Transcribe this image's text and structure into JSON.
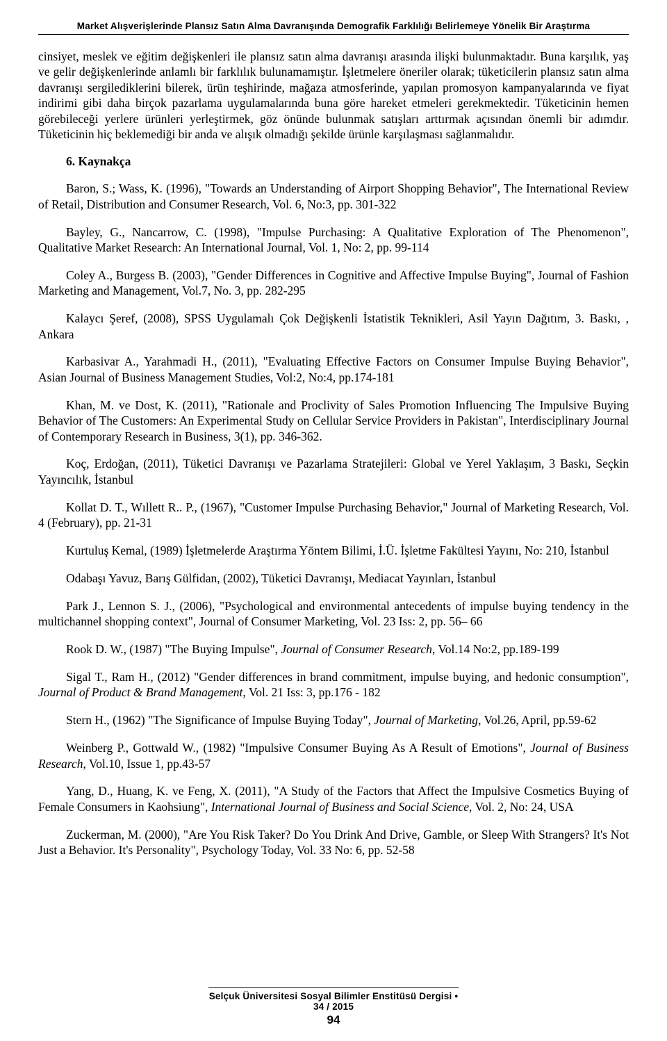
{
  "running_head": "Market Alışverişlerinde Plansız Satın Alma Davranışında Demografik Farklılığı Belirlemeye Yönelik Bir Araştırma",
  "body_paragraph": "cinsiyet, meslek ve eğitim değişkenleri ile plansız satın alma davranışı arasında ilişki bulunmaktadır. Buna karşılık, yaş ve gelir değişkenlerinde anlamlı bir farklılık bulunamamıştır. İşletmelere öneriler olarak; tüketicilerin plansız satın alma davranışı sergilediklerini bilerek, ürün teşhirinde, mağaza atmosferinde, yapılan promosyon kampanyalarında ve fiyat indirimi gibi daha birçok pazarlama uygulamalarında buna göre hareket etmeleri gerekmektedir. Tüketicinin hemen görebileceği yerlere ürünleri yerleştirmek, göz önünde bulunmak satışları arttırmak açısından önemli bir adımdır. Tüketicinin hiç beklemediği bir anda ve alışık olmadığı şekilde ürünle karşılaşması sağlanmalıdır.",
  "heading": "6. Kaynakça",
  "refs": [
    {
      "plain": "Baron, S.; Wass, K. (1996), \"Towards an Understanding of Airport Shopping Behavior\", The International Review of Retail, Distribution and Consumer Research, Vol. 6, No:3, pp. 301-322"
    },
    {
      "plain": "Bayley, G., Nancarrow, C. (1998), \"Impulse Purchasing: A Qualitative Exploration of The Phenomenon\", Qualitative Market Research: An International Journal, Vol. 1, No: 2, pp. 99-114"
    },
    {
      "plain": "Coley A., Burgess B. (2003), \"Gender Differences in Cognitive and Affective Impulse Buying\", Journal of Fashion Marketing and Management, Vol.7, No. 3, pp. 282-295"
    },
    {
      "plain": "Kalaycı Şeref, (2008), SPSS Uygulamalı Çok Değişkenli İstatistik Teknikleri, Asil Yayın Dağıtım, 3. Baskı, , Ankara"
    },
    {
      "plain": "Karbasivar A., Yarahmadi H., (2011), \"Evaluating Effective Factors on Consumer Impulse Buying Behavior\", Asian Journal of Business Management Studies, Vol:2, No:4, pp.174-181"
    },
    {
      "plain": "Khan, M. ve Dost, K. (2011), \"Rationale and Proclivity of Sales Promotion Influencing The Impulsive Buying Behavior of The Customers: An Experimental Study on Cellular Service Providers in Pakistan\", Interdisciplinary Journal of Contemporary Research in Business, 3(1), pp. 346-362."
    },
    {
      "plain": "Koç, Erdoğan, (2011), Tüketici Davranışı ve Pazarlama Stratejileri: Global ve Yerel Yaklaşım, 3 Baskı, Seçkin Yayıncılık, İstanbul"
    },
    {
      "plain": "Kollat D. T., Wıllett R.. P., (1967), \"Customer Impulse Purchasing Behavior,\" Journal of Marketing Research, Vol. 4 (February), pp. 21-31"
    },
    {
      "plain": "Kurtuluş Kemal, (1989) İşletmelerde Araştırma Yöntem Bilimi, İ.Ü. İşletme Fakültesi Yayını, No: 210, İstanbul"
    },
    {
      "plain": "Odabaşı Yavuz, Barış Gülfidan, (2002), Tüketici Davranışı, Mediacat Yayınları, İstanbul"
    },
    {
      "plain": "Park J., Lennon S. J., (2006), \"Psychological and environmental antecedents of impulse buying tendency in the multichannel shopping context\", Journal of Consumer Marketing, Vol. 23 Iss: 2, pp. 56– 66"
    },
    {
      "pre": "Rook D. W., (1987) \"The Buying Impulse\", ",
      "it": "Journal of Consumer Research",
      "post": ", Vol.14 No:2, pp.189-199"
    },
    {
      "pre": "Sigal T., Ram H., (2012) \"Gender differences in brand commitment, impulse buying, and hedonic consumption\", ",
      "it": "Journal of Product & Brand Management",
      "post": ", Vol. 21 Iss: 3, pp.176 - 182"
    },
    {
      "pre": "Stern H., (1962) \"The Significance of Impulse Buying Today\", ",
      "it": "Journal of Marketing",
      "post": ", Vol.26, April, pp.59-62"
    },
    {
      "pre": "Weinberg P., Gottwald W., (1982) \"Impulsive Consumer Buying As A Result of Emotions\", ",
      "it": "Journal of Business Research",
      "post": ", Vol.10, Issue 1, pp.43-57"
    },
    {
      "pre": "Yang, D., Huang, K. ve Feng, X. (2011), \"A Study of the Factors that Affect the Impulsive Cosmetics Buying of Female Consumers in Kaohsiung\", ",
      "it": "International Journal of Business and Social Science",
      "post": ", Vol. 2, No: 24, USA"
    },
    {
      "plain": "Zuckerman, M. (2000), \"Are You Risk Taker? Do You Drink And Drive, Gamble, or Sleep With Strangers? It's Not Just a Behavior. It's Personality\", Psychology Today, Vol. 33 No: 6, pp. 52-58"
    }
  ],
  "footer": {
    "journal": "Selçuk Üniversitesi Sosyal Bilimler Enstitüsü Dergisi • 34 / 2015",
    "page": "94"
  }
}
